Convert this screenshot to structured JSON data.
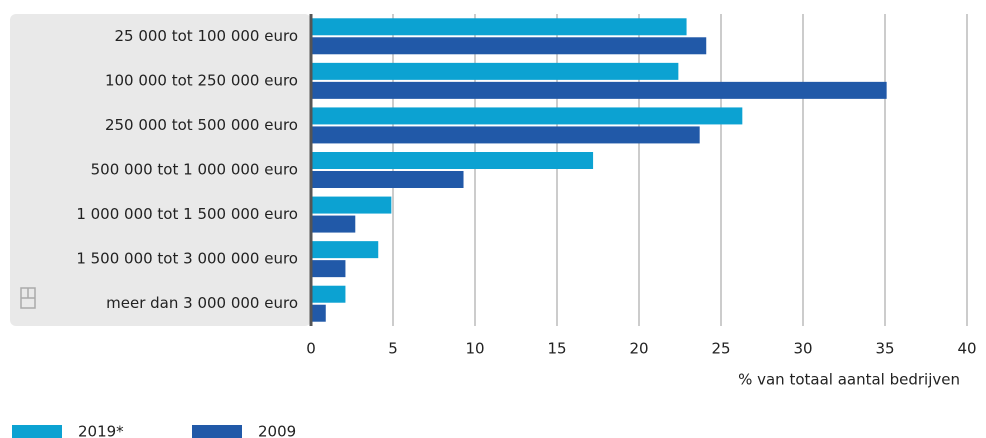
{
  "chart_data": {
    "type": "barh",
    "categories": [
      "25 000 tot 100 000 euro",
      "100 000 tot 250 000 euro",
      "250 000 tot 500 000 euro",
      "500 000 tot 1 000 000 euro",
      "1 000 000 tot 1 500 000 euro",
      "1 500 000 tot 3 000 000 euro",
      "meer dan 3 000 000 euro"
    ],
    "series": [
      {
        "name": "2019*",
        "color": "#0ca2d2",
        "values": [
          22.9,
          22.4,
          26.3,
          17.2,
          4.9,
          4.1,
          2.1
        ]
      },
      {
        "name": "2009",
        "color": "#2159a8",
        "values": [
          24.1,
          35.1,
          23.7,
          9.3,
          2.7,
          2.1,
          0.9
        ]
      }
    ],
    "xlabel": "% van totaal aantal bedrijven",
    "xlim": [
      0,
      40
    ],
    "xticks": [
      0,
      5,
      10,
      15,
      20,
      25,
      30,
      35,
      40
    ],
    "grid": true
  }
}
